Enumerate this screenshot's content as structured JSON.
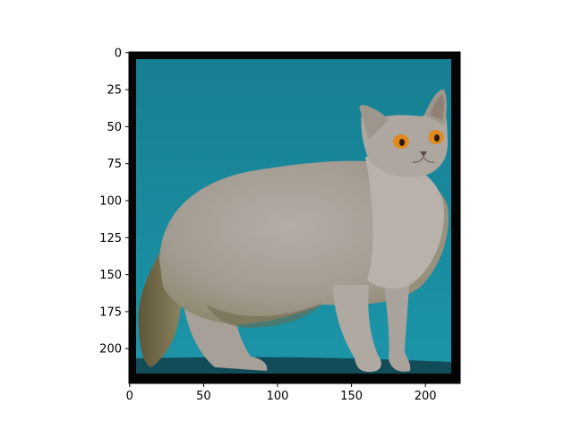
{
  "chart_data": {
    "type": "image",
    "title": "",
    "xlabel": "",
    "ylabel": "",
    "xlim": [
      -0.5,
      223.5
    ],
    "ylim": [
      223.5,
      -0.5
    ],
    "x_ticks": [
      {
        "value": 0,
        "label": "0"
      },
      {
        "value": 50,
        "label": "50"
      },
      {
        "value": 100,
        "label": "100"
      },
      {
        "value": 150,
        "label": "150"
      },
      {
        "value": 200,
        "label": "200"
      }
    ],
    "y_ticks": [
      {
        "value": 0,
        "label": "0"
      },
      {
        "value": 25,
        "label": "25"
      },
      {
        "value": 50,
        "label": "50"
      },
      {
        "value": 75,
        "label": "75"
      },
      {
        "value": 100,
        "label": "100"
      },
      {
        "value": 125,
        "label": "125"
      },
      {
        "value": 150,
        "label": "150"
      },
      {
        "value": 175,
        "label": "175"
      },
      {
        "value": 200,
        "label": "200"
      }
    ],
    "image_content": "gray-cat-icon"
  },
  "colors": {
    "backdrop_top": "#177f92",
    "backdrop_bottom": "#1c95a8",
    "floor": "#0f3f4a",
    "frame": "#050505",
    "fur_light": "#b1aaa3",
    "fur_mid": "#968f80",
    "fur_dark": "#6d6540",
    "eye": "#e08a1e",
    "pupil": "#2a1a08"
  }
}
